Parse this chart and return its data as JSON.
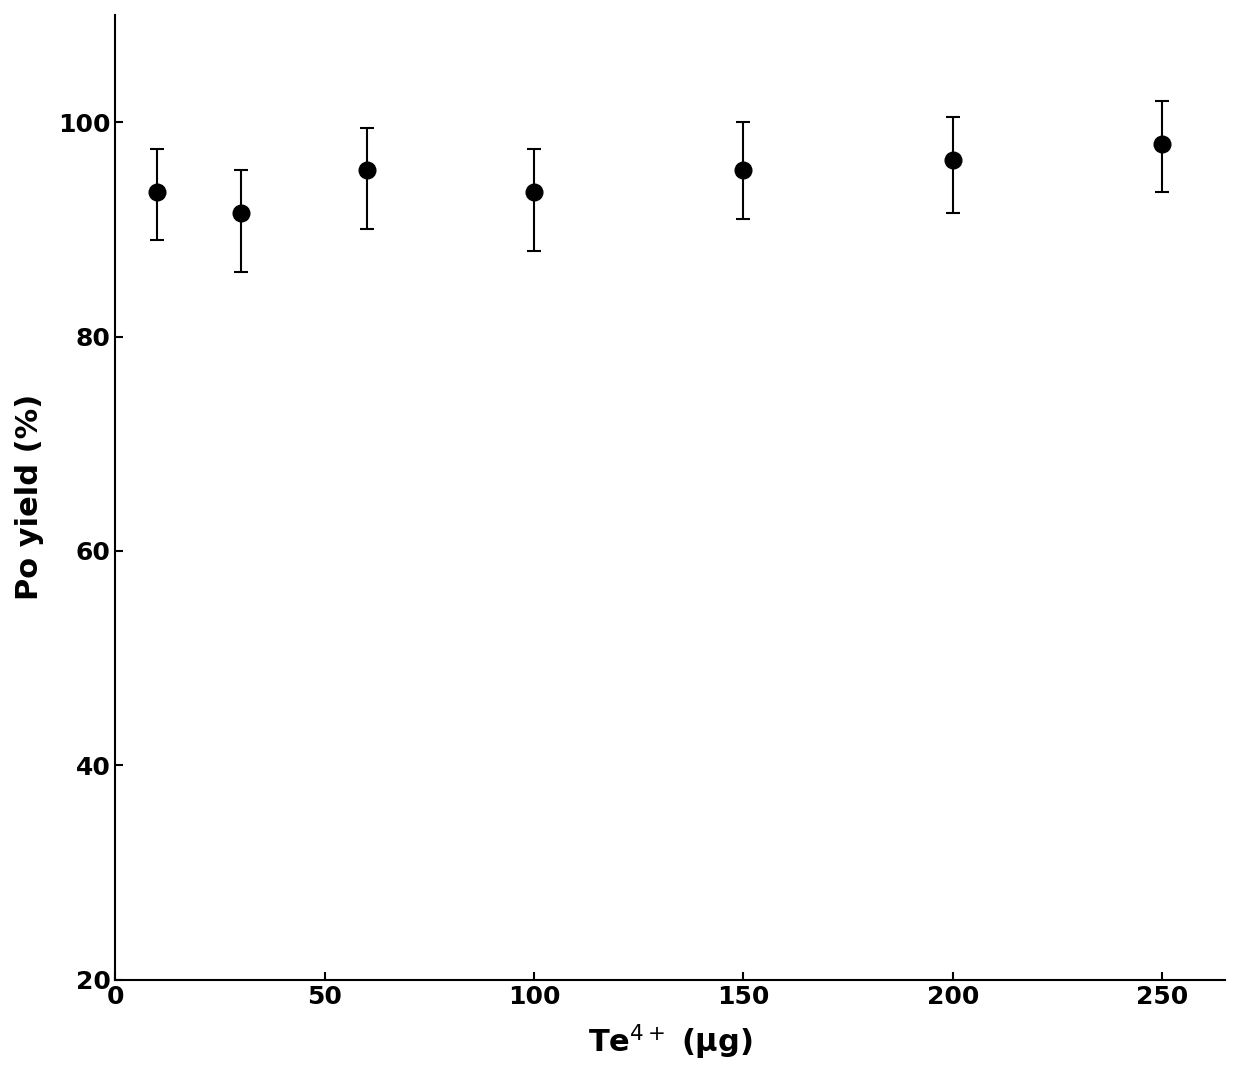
{
  "x": [
    10,
    30,
    60,
    100,
    150,
    200,
    250
  ],
  "y": [
    93.5,
    91.5,
    95.5,
    93.5,
    95.5,
    96.5,
    98.0
  ],
  "yerr_upper": [
    4.0,
    4.0,
    4.0,
    4.0,
    4.5,
    4.0,
    4.0
  ],
  "yerr_lower": [
    4.5,
    5.5,
    5.5,
    5.5,
    4.5,
    5.0,
    4.5
  ],
  "xlabel": "Te$^{4+}$ (μg)",
  "ylabel": "Po yield (%)",
  "xlim": [
    0,
    265
  ],
  "ylim": [
    20,
    110
  ],
  "yticks": [
    20,
    40,
    60,
    80,
    100
  ],
  "xticks": [
    0,
    50,
    100,
    150,
    200,
    250
  ],
  "marker_color": "#000000",
  "marker_size": 12,
  "capsize": 5,
  "linewidth": 1.5,
  "axis_linewidth": 1.5,
  "tick_fontsize": 18,
  "label_fontsize": 22
}
